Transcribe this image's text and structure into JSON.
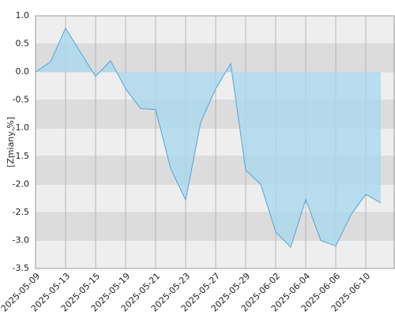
{
  "chart_data": {
    "type": "area",
    "y_label": "[Zmiany,%]",
    "categories": [
      "2025-05-09",
      null,
      "2025-05-13",
      null,
      "2025-05-15",
      null,
      "2025-05-19",
      null,
      "2025-05-21",
      null,
      "2025-05-23",
      null,
      "2025-05-27",
      null,
      "2025-05-29",
      null,
      "2025-06-02",
      null,
      "2025-06-04",
      null,
      "2025-06-06",
      null,
      "2025-06-10",
      null
    ],
    "values": [
      0.0,
      0.18,
      0.78,
      0.35,
      -0.08,
      0.2,
      -0.3,
      -0.65,
      -0.67,
      -1.72,
      -2.28,
      -0.9,
      -0.3,
      0.15,
      -1.75,
      -2.0,
      -2.85,
      -3.12,
      -2.27,
      -3.0,
      -3.1,
      -2.55,
      -2.18,
      -2.33
    ],
    "color": "#4fa6dc",
    "fill": "#a9d8ee",
    "ylim": [
      -3.5,
      1.0
    ],
    "yticks": [
      {
        "value": 1,
        "label": "1.0"
      },
      0.5,
      {
        "value": 0,
        "label": "0.0"
      },
      -0.5,
      {
        "value": -1,
        "label": "-1.0"
      },
      -1.5,
      {
        "value": -2,
        "label": "-2.0"
      },
      -2.5,
      {
        "value": -3,
        "label": "-3.0"
      },
      -3.5
    ],
    "grid": true
  }
}
